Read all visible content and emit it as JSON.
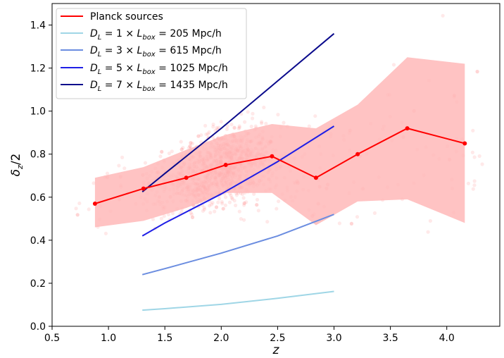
{
  "chart_data": {
    "type": "line",
    "xlabel": "z",
    "ylabel": "δz/2",
    "xlim": [
      0.5,
      4.47
    ],
    "ylim": [
      0.0,
      1.5
    ],
    "xticks": [
      "0.5",
      "1.0",
      "1.5",
      "2.0",
      "2.5",
      "3.0",
      "3.5",
      "4.0"
    ],
    "yticks": [
      "0.0",
      "0.2",
      "0.4",
      "0.6",
      "0.8",
      "1.0",
      "1.2",
      "1.4"
    ],
    "grid": false,
    "legend_placement": "top-left",
    "planck": {
      "name": "Planck sources",
      "color": "#ff0000",
      "band_color": "#ffb9b9",
      "x": [
        0.88,
        1.31,
        1.69,
        2.04,
        2.45,
        2.84,
        3.21,
        3.65,
        4.16
      ],
      "y": [
        0.57,
        0.64,
        0.69,
        0.75,
        0.79,
        0.69,
        0.8,
        0.92,
        0.85
      ],
      "band_upper": [
        0.69,
        0.74,
        0.82,
        0.89,
        0.94,
        0.92,
        1.03,
        1.25,
        1.22
      ],
      "band_lower": [
        0.46,
        0.49,
        0.55,
        0.62,
        0.62,
        0.47,
        0.58,
        0.59,
        0.48
      ]
    },
    "series": [
      {
        "name": "D_L = 1 × L_box = 205  Mpc/h",
        "label_mult": "1",
        "label_val": "205",
        "color": "#9fd6e6",
        "x": [
          1.3,
          1.5,
          2.0,
          2.5,
          3.0
        ],
        "y": [
          0.075,
          0.082,
          0.102,
          0.13,
          0.162
        ]
      },
      {
        "name": "D_L = 3 × L_box = 615  Mpc/h",
        "label_mult": "3",
        "label_val": "615",
        "color": "#6b8de0",
        "x": [
          1.3,
          1.5,
          2.0,
          2.5,
          3.0
        ],
        "y": [
          0.24,
          0.268,
          0.34,
          0.42,
          0.52
        ]
      },
      {
        "name": "D_L = 5 × L_box = 1025  Mpc/h",
        "label_mult": "5",
        "label_val": "1025",
        "color": "#1f1fe6",
        "x": [
          1.3,
          1.5,
          2.0,
          2.5,
          3.0
        ],
        "y": [
          0.42,
          0.48,
          0.615,
          0.765,
          0.93
        ]
      },
      {
        "name": "D_L = 7 × L_box = 1435  Mpc/h",
        "label_mult": "7",
        "label_val": "1435",
        "color": "#0a0a8c",
        "x": [
          1.3,
          1.5,
          2.0,
          2.5,
          3.0
        ],
        "y": [
          0.625,
          0.71,
          0.92,
          1.14,
          1.36
        ]
      }
    ]
  }
}
